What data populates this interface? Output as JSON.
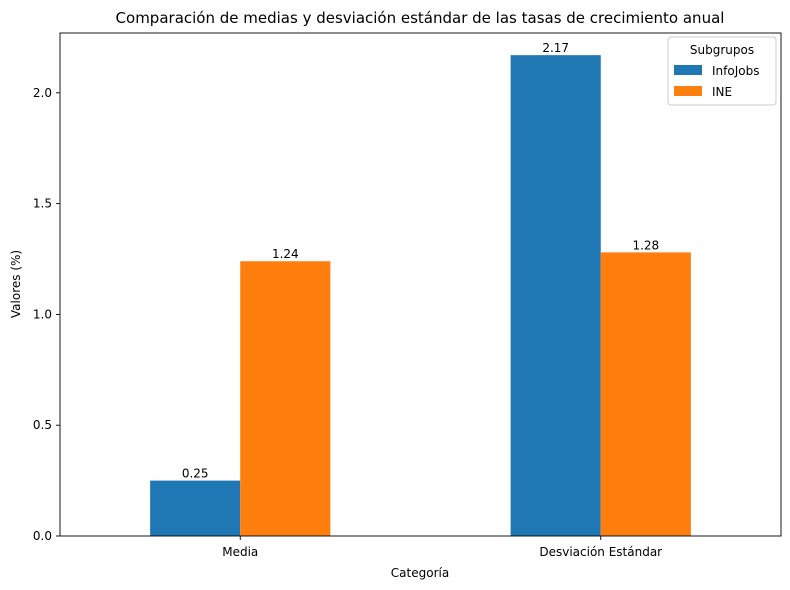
{
  "chart_data": {
    "type": "bar",
    "title": "Comparación de medias y desviación estándar de las tasas de crecimiento anual",
    "xlabel": "Categoría",
    "ylabel": "Valores (%)",
    "categories": [
      "Media",
      "Desviación Estándar"
    ],
    "series": [
      {
        "name": "InfoJobs",
        "values": [
          0.25,
          2.17
        ],
        "labels": [
          "0.25",
          "2.17"
        ],
        "color": "#1f77b4"
      },
      {
        "name": "INE",
        "values": [
          1.24,
          1.28
        ],
        "labels": [
          "1.24",
          "1.28"
        ],
        "color": "#ff7f0e"
      }
    ],
    "ylim": [
      0,
      2.27
    ],
    "yticks": [
      0.0,
      0.5,
      1.0,
      1.5,
      2.0
    ],
    "ytick_labels": [
      "0.0",
      "0.5",
      "1.0",
      "1.5",
      "2.0"
    ],
    "grid": false,
    "legend": {
      "title": "Subgrupos",
      "placement": "top-right"
    }
  }
}
